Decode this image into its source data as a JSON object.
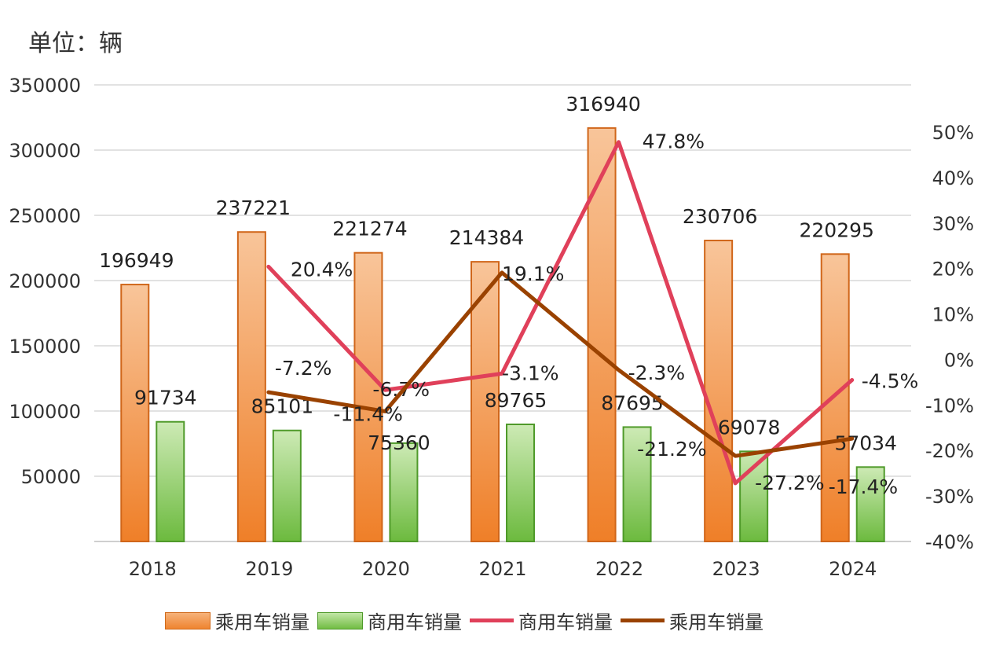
{
  "unit_label": "单位：辆",
  "chart_data": {
    "type": "bar+line",
    "categories": [
      "2018",
      "2019",
      "2020",
      "2021",
      "2022",
      "2023",
      "2024"
    ],
    "y_left": {
      "ylim": [
        0,
        350000
      ],
      "ticks": [
        "50000",
        "100000",
        "150000",
        "200000",
        "250000",
        "300000",
        "350000"
      ]
    },
    "y_right": {
      "ylim": [
        -40,
        50
      ],
      "ticks": [
        "-40%",
        "-30%",
        "-20%",
        "-10%",
        "0%",
        "10%",
        "20%",
        "30%",
        "40%",
        "50%"
      ]
    },
    "grid": true,
    "legend": "bottom",
    "series": [
      {
        "name": "乘用车销量",
        "kind": "bar",
        "axis": "left",
        "color": "#f08a36",
        "values": [
          196949,
          237221,
          221274,
          214384,
          316940,
          230706,
          220295
        ],
        "labels": [
          "196949",
          "237221",
          "221274",
          "214384",
          "316940",
          "230706",
          "220295"
        ]
      },
      {
        "name": "商用车销量",
        "kind": "bar",
        "axis": "left",
        "color": "#7cc24e",
        "values": [
          91734,
          85101,
          75360,
          89765,
          87695,
          69078,
          57034
        ],
        "labels": [
          "91734",
          "85101",
          "75360",
          "89765",
          "87695",
          "69078",
          "57034"
        ]
      },
      {
        "name": "商用车销量",
        "kind": "line",
        "axis": "right",
        "color": "#e0405a",
        "values": [
          null,
          20.4,
          -6.7,
          -3.1,
          47.8,
          -27.2,
          -4.5
        ],
        "labels": [
          "",
          "20.4%",
          "-6.7%",
          "-3.1%",
          "47.8%",
          "-27.2%",
          "-4.5%"
        ]
      },
      {
        "name": "乘用车销量",
        "kind": "line",
        "axis": "right",
        "color": "#9a4200",
        "values": [
          null,
          -7.2,
          -11.4,
          19.1,
          -2.3,
          -21.2,
          -17.4
        ],
        "labels": [
          "",
          "-7.2%",
          "-11.4%",
          "19.1%",
          "-2.3%",
          "-21.2%",
          "-17.4%"
        ]
      }
    ]
  }
}
